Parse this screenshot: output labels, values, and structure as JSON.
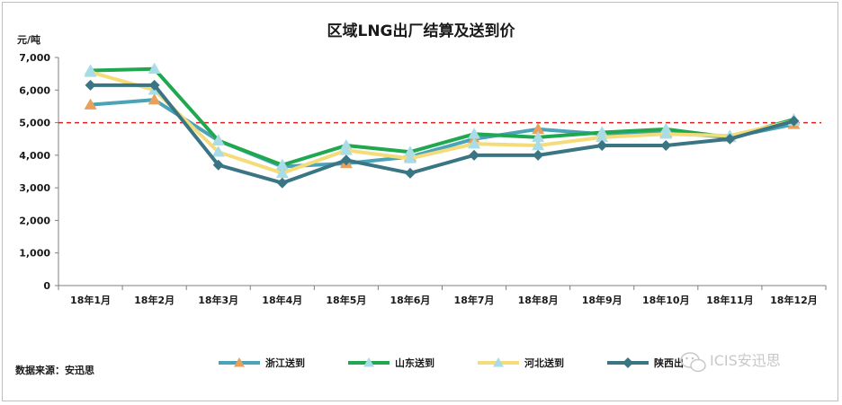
{
  "chart_data": {
    "type": "line",
    "title": "区域LNG出厂结算及送到价",
    "ylabel": "元/吨",
    "ylim": [
      0,
      7000
    ],
    "yticks": [
      0,
      1000,
      2000,
      3000,
      4000,
      5000,
      6000,
      7000
    ],
    "ytick_labels": [
      "0",
      "1,000",
      "2,000",
      "3,000",
      "4,000",
      "5,000",
      "6,000",
      "7,000"
    ],
    "categories": [
      "18年1月",
      "18年2月",
      "18年3月",
      "18年4月",
      "18年5月",
      "18年6月",
      "18年7月",
      "18年8月",
      "18年9月",
      "18年10月",
      "18年11月",
      "18年12月"
    ],
    "reference_line": {
      "value": 5000,
      "color": "#e02020",
      "style": "dashed"
    },
    "legend_position": "bottom",
    "grid": false,
    "series": [
      {
        "name": "浙江送到",
        "color": "#4aa3b8",
        "marker": "triangle",
        "marker_color": "#e8a05a",
        "values": [
          5550,
          5700,
          4450,
          3650,
          3750,
          3950,
          4500,
          4800,
          4650,
          4700,
          4550,
          4950
        ]
      },
      {
        "name": "山东送到",
        "color": "#1fa84f",
        "marker": "triangle",
        "marker_color": "#a8dce6",
        "values": [
          6600,
          6650,
          4450,
          3700,
          4300,
          4100,
          4650,
          4550,
          4700,
          4800,
          4550,
          5100
        ]
      },
      {
        "name": "河北送到",
        "color": "#f5dc7a",
        "marker": "triangle",
        "marker_color": "#a8dce6",
        "values": [
          6550,
          6000,
          4100,
          3450,
          4150,
          3900,
          4350,
          4300,
          4550,
          4650,
          4600,
          5050
        ]
      },
      {
        "name": "陕西出",
        "color": "#3a7584",
        "marker": "diamond",
        "marker_color": "#3a7584",
        "values": [
          6150,
          6150,
          3700,
          3150,
          3850,
          3450,
          4000,
          4000,
          4300,
          4300,
          4500,
          5050
        ]
      }
    ]
  },
  "source_label": "数据来源：安迅思",
  "watermark": "ICIS安迅思",
  "watermark_icon": "wechat-icon"
}
